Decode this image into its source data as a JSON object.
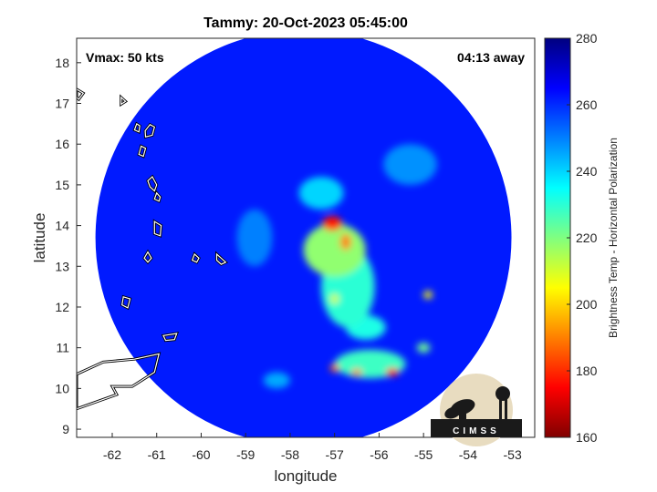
{
  "chart_data": {
    "type": "heatmap",
    "title": "Tammy: 20-Oct-2023 05:45:00",
    "xlabel": "longitude",
    "ylabel": "latitude",
    "xlim": [
      -62.8,
      -52.5
    ],
    "ylim": [
      8.8,
      18.6
    ],
    "x_ticks": [
      -62,
      -61,
      -60,
      -59,
      -58,
      -57,
      -56,
      -55,
      -54,
      -53
    ],
    "y_ticks": [
      9,
      10,
      11,
      12,
      13,
      14,
      15,
      16,
      17,
      18
    ],
    "x_tick_labels": [
      "-62",
      "-61",
      "-60",
      "-59",
      "-58",
      "-57",
      "-56",
      "-55",
      "-54",
      "-53"
    ],
    "y_tick_labels": [
      "9",
      "10",
      "11",
      "12",
      "13",
      "14",
      "15",
      "16",
      "17",
      "18"
    ],
    "colorbar": {
      "label": "Brightness Temp - Horizontal Polarization",
      "range": [
        160,
        280
      ],
      "ticks": [
        160,
        180,
        200,
        220,
        240,
        260,
        280
      ],
      "tick_labels": [
        "160",
        "180",
        "200",
        "220",
        "240",
        "260",
        "280"
      ],
      "colormap": "jet"
    },
    "swath": {
      "center_lon": -57.7,
      "center_lat": 13.7,
      "radius_deg": 5.1
    },
    "background_temp": 262,
    "features": [
      {
        "lon": -57.05,
        "lat": 14.05,
        "temp": 178,
        "sx": 0.22,
        "sy": 0.18
      },
      {
        "lon": -56.75,
        "lat": 13.6,
        "temp": 190,
        "sx": 0.12,
        "sy": 0.2
      },
      {
        "lon": -57.0,
        "lat": 13.4,
        "temp": 218,
        "sx": 0.7,
        "sy": 0.65
      },
      {
        "lon": -56.7,
        "lat": 12.5,
        "temp": 230,
        "sx": 0.6,
        "sy": 1.0
      },
      {
        "lon": -55.7,
        "lat": 10.4,
        "temp": 175,
        "sx": 0.14,
        "sy": 0.1
      },
      {
        "lon": -56.5,
        "lat": 10.4,
        "temp": 190,
        "sx": 0.12,
        "sy": 0.08
      },
      {
        "lon": -57.0,
        "lat": 10.5,
        "temp": 188,
        "sx": 0.1,
        "sy": 0.1
      },
      {
        "lon": -56.2,
        "lat": 10.6,
        "temp": 228,
        "sx": 0.8,
        "sy": 0.35
      },
      {
        "lon": -54.9,
        "lat": 12.3,
        "temp": 205,
        "sx": 0.1,
        "sy": 0.1
      },
      {
        "lon": -57.0,
        "lat": 12.2,
        "temp": 210,
        "sx": 0.1,
        "sy": 0.12
      },
      {
        "lon": -55.0,
        "lat": 11.0,
        "temp": 222,
        "sx": 0.15,
        "sy": 0.12
      },
      {
        "lon": -56.3,
        "lat": 11.5,
        "temp": 232,
        "sx": 0.45,
        "sy": 0.3
      },
      {
        "lon": -57.3,
        "lat": 14.8,
        "temp": 240,
        "sx": 0.5,
        "sy": 0.4
      },
      {
        "lon": -55.3,
        "lat": 15.5,
        "temp": 248,
        "sx": 0.6,
        "sy": 0.5
      },
      {
        "lon": -58.8,
        "lat": 13.7,
        "temp": 250,
        "sx": 0.4,
        "sy": 0.7
      },
      {
        "lon": -58.3,
        "lat": 10.2,
        "temp": 245,
        "sx": 0.3,
        "sy": 0.2
      }
    ],
    "islands": [
      [
        [
          -61.26,
          16.33
        ],
        [
          -61.15,
          16.48
        ],
        [
          -61.05,
          16.42
        ],
        [
          -61.1,
          16.22
        ],
        [
          -61.25,
          16.18
        ]
      ],
      [
        [
          -61.45,
          16.5
        ],
        [
          -61.38,
          16.45
        ],
        [
          -61.4,
          16.3
        ],
        [
          -61.5,
          16.35
        ]
      ],
      [
        [
          -61.35,
          15.95
        ],
        [
          -61.25,
          15.9
        ],
        [
          -61.3,
          15.7
        ],
        [
          -61.4,
          15.75
        ]
      ],
      [
        [
          -61.1,
          15.2
        ],
        [
          -61.0,
          15.0
        ],
        [
          -61.05,
          14.85
        ],
        [
          -61.15,
          14.95
        ],
        [
          -61.2,
          15.1
        ]
      ],
      [
        [
          -61.0,
          14.8
        ],
        [
          -60.92,
          14.7
        ],
        [
          -60.95,
          14.6
        ],
        [
          -61.05,
          14.65
        ]
      ],
      [
        [
          -61.05,
          14.1
        ],
        [
          -60.9,
          14.0
        ],
        [
          -60.92,
          13.75
        ],
        [
          -61.05,
          13.8
        ]
      ],
      [
        [
          -61.2,
          13.35
        ],
        [
          -61.12,
          13.2
        ],
        [
          -61.2,
          13.1
        ],
        [
          -61.28,
          13.2
        ]
      ],
      [
        [
          -59.65,
          13.3
        ],
        [
          -59.45,
          13.1
        ],
        [
          -59.55,
          13.05
        ],
        [
          -59.65,
          13.15
        ]
      ],
      [
        [
          -61.75,
          12.25
        ],
        [
          -61.6,
          12.2
        ],
        [
          -61.65,
          11.98
        ],
        [
          -61.78,
          12.05
        ]
      ],
      [
        [
          -60.85,
          11.3
        ],
        [
          -60.55,
          11.35
        ],
        [
          -60.6,
          11.2
        ],
        [
          -60.8,
          11.18
        ]
      ],
      [
        [
          -62.8,
          10.35
        ],
        [
          -62.2,
          10.65
        ],
        [
          -61.5,
          10.72
        ],
        [
          -60.95,
          10.85
        ],
        [
          -61.05,
          10.4
        ],
        [
          -61.55,
          10.05
        ],
        [
          -62.0,
          10.05
        ],
        [
          -61.9,
          9.85
        ],
        [
          -62.8,
          9.5
        ]
      ],
      [
        [
          -62.8,
          17.35
        ],
        [
          -62.65,
          17.25
        ],
        [
          -62.75,
          17.1
        ],
        [
          -62.8,
          17.15
        ]
      ],
      [
        [
          -61.8,
          17.15
        ],
        [
          -61.7,
          17.05
        ],
        [
          -61.8,
          16.98
        ]
      ],
      [
        [
          -60.15,
          13.3
        ],
        [
          -60.05,
          13.2
        ],
        [
          -60.1,
          13.1
        ],
        [
          -60.2,
          13.15
        ]
      ]
    ],
    "annotations": {
      "left": "Vmax: 50 kts",
      "right": "04:13 away"
    }
  },
  "logo": {
    "text": "CIMSS"
  }
}
